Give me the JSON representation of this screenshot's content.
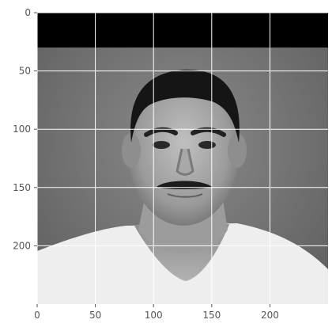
{
  "chart_data": {
    "type": "image",
    "title": "",
    "xlabel": "",
    "ylabel": "",
    "image_width": 250,
    "image_height": 250,
    "xlim": [
      0,
      250
    ],
    "ylim": [
      250,
      0
    ],
    "xticks": [
      0,
      50,
      100,
      150,
      200
    ],
    "yticks": [
      0,
      50,
      100,
      150,
      200
    ],
    "x_tick_labels": [
      "0",
      "50",
      "100",
      "150",
      "200"
    ],
    "y_tick_labels": [
      "0",
      "50",
      "100",
      "150",
      "200"
    ],
    "grid": true,
    "grid_color": "#ffffff",
    "tick_color": "#555555",
    "colormap": "gray",
    "content": {
      "top_band_color": "#000000",
      "top_band_end_row": 30,
      "background_color": "#6d6d6d",
      "shirt_color": "#f2f2f2",
      "hair_color": "#151515",
      "skin_color": "#a9a9a9"
    }
  }
}
